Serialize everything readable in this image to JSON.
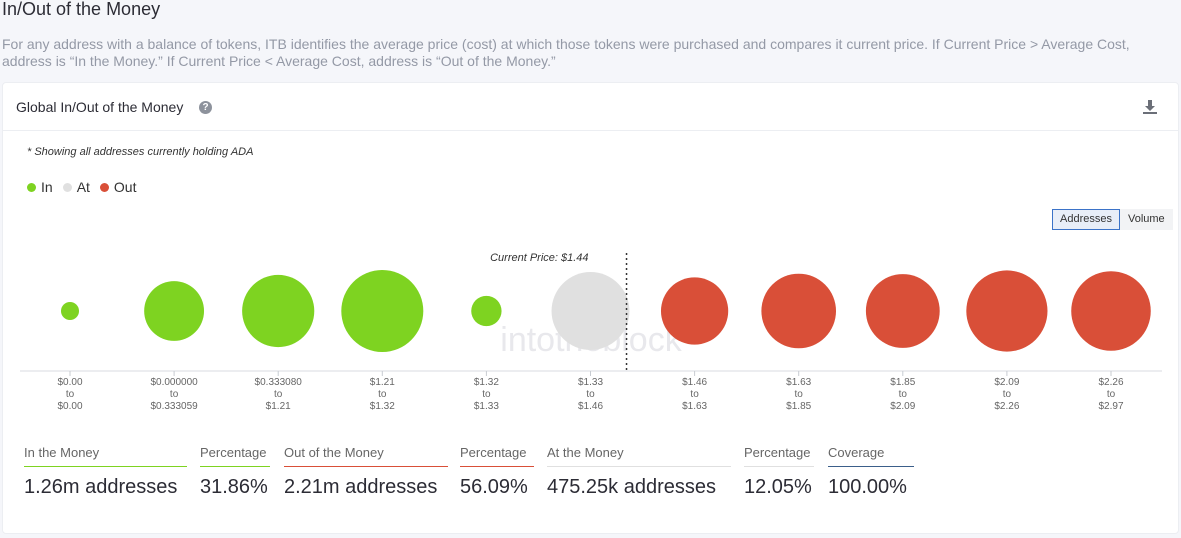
{
  "page": {
    "title": "In/Out of the Money",
    "description": "For any address with a balance of tokens, ITB identifies the average price (cost) at which those tokens were purchased and compares it current price. If Current Price > Average Cost, address is “In the Money.” If Current Price < Average Cost, address is “Out of the Money.”"
  },
  "card": {
    "title": "Global In/Out of the Money",
    "help_icon": "?",
    "note": "* Showing all addresses currently holding ADA"
  },
  "legend": [
    {
      "label": "In",
      "color": "#7ed321"
    },
    {
      "label": "At",
      "color": "#e0e0e0"
    },
    {
      "label": "Out",
      "color": "#d94f38"
    }
  ],
  "toggle": {
    "addresses_label": "Addresses",
    "volume_label": "Volume",
    "active": "Addresses"
  },
  "watermark": "intotheblock",
  "colors": {
    "in": "#7ed321",
    "at": "#e0e0e0",
    "out": "#d94f38",
    "coverage": "#3b5f8a"
  },
  "chart_data": {
    "type": "bubble",
    "current_price_label": "Current Price: $1.44",
    "current_price": 1.44,
    "categories": [
      {
        "from": "$0.00",
        "to_word": "to",
        "to": "$0.00",
        "status": "in",
        "relative_size": 0.22
      },
      {
        "from": "$0.000000",
        "to_word": "to",
        "to": "$0.333059",
        "status": "in",
        "relative_size": 0.73
      },
      {
        "from": "$0.333080",
        "to_word": "to",
        "to": "$1.21",
        "status": "in",
        "relative_size": 0.88
      },
      {
        "from": "$1.21",
        "to_word": "to",
        "to": "$1.32",
        "status": "in",
        "relative_size": 1.0
      },
      {
        "from": "$1.32",
        "to_word": "to",
        "to": "$1.33",
        "status": "in",
        "relative_size": 0.37
      },
      {
        "from": "$1.33",
        "to_word": "to",
        "to": "$1.46",
        "status": "at",
        "relative_size": 0.95
      },
      {
        "from": "$1.46",
        "to_word": "to",
        "to": "$1.63",
        "status": "out",
        "relative_size": 0.82
      },
      {
        "from": "$1.63",
        "to_word": "to",
        "to": "$1.85",
        "status": "out",
        "relative_size": 0.91
      },
      {
        "from": "$1.85",
        "to_word": "to",
        "to": "$2.09",
        "status": "out",
        "relative_size": 0.9
      },
      {
        "from": "$2.09",
        "to_word": "to",
        "to": "$2.26",
        "status": "out",
        "relative_size": 0.99
      },
      {
        "from": "$2.26",
        "to_word": "to",
        "to": "$2.97",
        "status": "out",
        "relative_size": 0.97
      }
    ]
  },
  "stats": [
    {
      "label": "In the Money",
      "value": "1.26m addresses",
      "color": "#7ed321"
    },
    {
      "label": "Percentage",
      "value": "31.86%",
      "color": "#7ed321"
    },
    {
      "label": "Out of the Money",
      "value": "2.21m addresses",
      "color": "#d94f38"
    },
    {
      "label": "Percentage",
      "value": "56.09%",
      "color": "#d94f38"
    },
    {
      "label": "At the Money",
      "value": "475.25k addresses",
      "color": "#e0e0e0"
    },
    {
      "label": "Percentage",
      "value": "12.05%",
      "color": "#e0e0e0"
    },
    {
      "label": "Coverage",
      "value": "100.00%",
      "color": "#3b5f8a"
    }
  ]
}
